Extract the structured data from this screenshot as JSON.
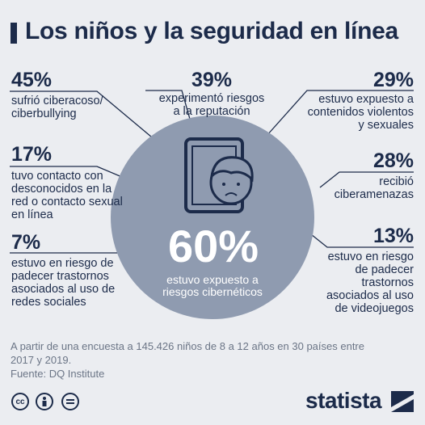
{
  "title": "Los niños y la seguridad en línea",
  "center": {
    "value": "60%",
    "label": "estuvo expuesto a riesgos cibernéticos"
  },
  "stats": {
    "s1": {
      "value": "45%",
      "label": "sufrió ciberacoso/ ciberbullying"
    },
    "s2": {
      "value": "39%",
      "label": "experimentó riesgos a la reputación"
    },
    "s3": {
      "value": "29%",
      "label": "estuvo expuesto a contenidos violentos y sexuales"
    },
    "s4": {
      "value": "17%",
      "label": "tuvo contacto con desconocidos en la red o contacto sexual en línea"
    },
    "s5": {
      "value": "28%",
      "label": "recibió ciberamenazas"
    },
    "s6": {
      "value": "7%",
      "label": "estuvo en riesgo de padecer trastornos asociados al uso de redes sociales"
    },
    "s7": {
      "value": "13%",
      "label": "estuvo en riesgo de padecer trastornos asociados al uso de videojuegos"
    }
  },
  "footnote": "A partir de una encuesta a 145.426 niños de 8 a 12 años en 30 países entre 2017 y 2019.",
  "source": "Fuente: DQ Institute",
  "license_icons": [
    "cc-icon",
    "person-icon",
    "equal-icon"
  ],
  "brand": "statista",
  "colors": {
    "navy": "#1c2b4a",
    "circle": "#8f9bb0",
    "background": "#ebedf1"
  }
}
